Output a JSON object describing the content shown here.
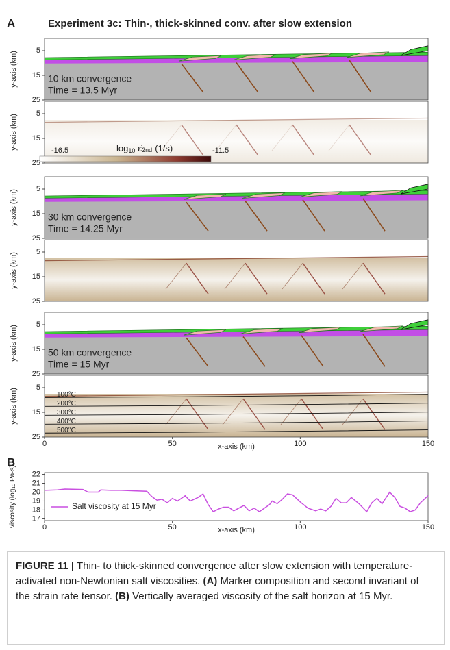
{
  "panel_a": {
    "label": "A",
    "title": "Experiment 3c: Thin-, thick-skinned conv. after slow extension",
    "y_label": "y-axis (km)",
    "x_label": "x-axis (km)",
    "xlim": [
      0,
      150
    ],
    "xticks": [
      0,
      50,
      100,
      150
    ],
    "ylim": [
      0,
      25
    ],
    "yticks": [
      5,
      15,
      25
    ],
    "colorbar": {
      "min_label": "-16.5",
      "max_label": "-11.5",
      "log": "log",
      "base": "10",
      "symbol": "ε̇",
      "sub": "2nd",
      "unit": "(1/s)"
    },
    "subpanels": [
      {
        "kind": "composition",
        "texts": [
          "10 km convergence",
          "Time = 13.5 Myr"
        ]
      },
      {
        "kind": "strain_rate"
      },
      {
        "kind": "composition",
        "texts": [
          "30 km convergence",
          "Time = 14.25 Myr"
        ]
      },
      {
        "kind": "strain_rate"
      },
      {
        "kind": "composition",
        "texts": [
          "50 km convergence",
          "Time = 15 Myr"
        ]
      },
      {
        "kind": "strain_rate",
        "isotherms": [
          "100°C",
          "200°C",
          "300°C",
          "400°C",
          "500°C"
        ]
      }
    ]
  },
  "chart_data": {
    "type": "line",
    "label": "B",
    "x_label": "x-axis (km)",
    "y_label_pre": "viscosity (log",
    "y_label_base": "10",
    "y_label_post": "Pa·s)",
    "xlim": [
      0,
      150
    ],
    "xticks": [
      0,
      50,
      100,
      150
    ],
    "ylim": [
      16.8,
      22.2
    ],
    "yticks": [
      17,
      18,
      19,
      20,
      21,
      22
    ],
    "x": [
      0,
      5,
      8,
      15,
      17,
      21,
      22,
      26,
      30,
      35,
      40,
      42,
      44,
      46,
      48,
      50,
      52,
      55,
      57,
      60,
      62,
      64,
      66,
      68,
      70,
      72,
      74,
      76,
      78,
      80,
      82,
      84,
      86,
      88,
      89,
      91,
      93,
      95,
      97,
      100,
      103,
      106,
      108,
      110,
      112,
      114,
      116,
      118,
      120,
      123,
      126,
      128,
      130,
      132,
      135,
      137,
      139,
      141,
      143,
      145,
      147,
      150
    ],
    "series": [
      {
        "name": "Salt viscosity at 15 Myr",
        "color": "#c94fe0",
        "values": [
          20.2,
          20.25,
          20.35,
          20.3,
          20.0,
          20.0,
          20.25,
          20.2,
          20.2,
          20.15,
          20.1,
          19.5,
          19.1,
          19.2,
          18.8,
          19.3,
          19.0,
          19.6,
          19.0,
          19.4,
          19.8,
          18.6,
          17.8,
          18.1,
          18.3,
          18.3,
          17.9,
          18.2,
          18.5,
          17.9,
          18.2,
          17.8,
          18.2,
          18.6,
          19.0,
          18.7,
          19.2,
          19.8,
          19.7,
          18.9,
          18.2,
          17.9,
          18.1,
          17.9,
          18.4,
          19.3,
          18.8,
          18.8,
          19.4,
          18.7,
          17.8,
          18.8,
          19.3,
          18.7,
          20.0,
          19.4,
          18.4,
          18.2,
          17.8,
          18.0,
          18.8,
          19.6
        ]
      }
    ]
  },
  "caption": {
    "label": "FIGURE 11 |",
    "text1": "Thin- to thick-skinned convergence after slow extension with temperature-activated non-Newtonian salt viscosities.",
    "a": "(A)",
    "text2": "Marker composition and second invariant of the strain rate tensor.",
    "b": "(B)",
    "text3": "Vertically averaged viscosity of the salt horizon at 15 Myr."
  }
}
